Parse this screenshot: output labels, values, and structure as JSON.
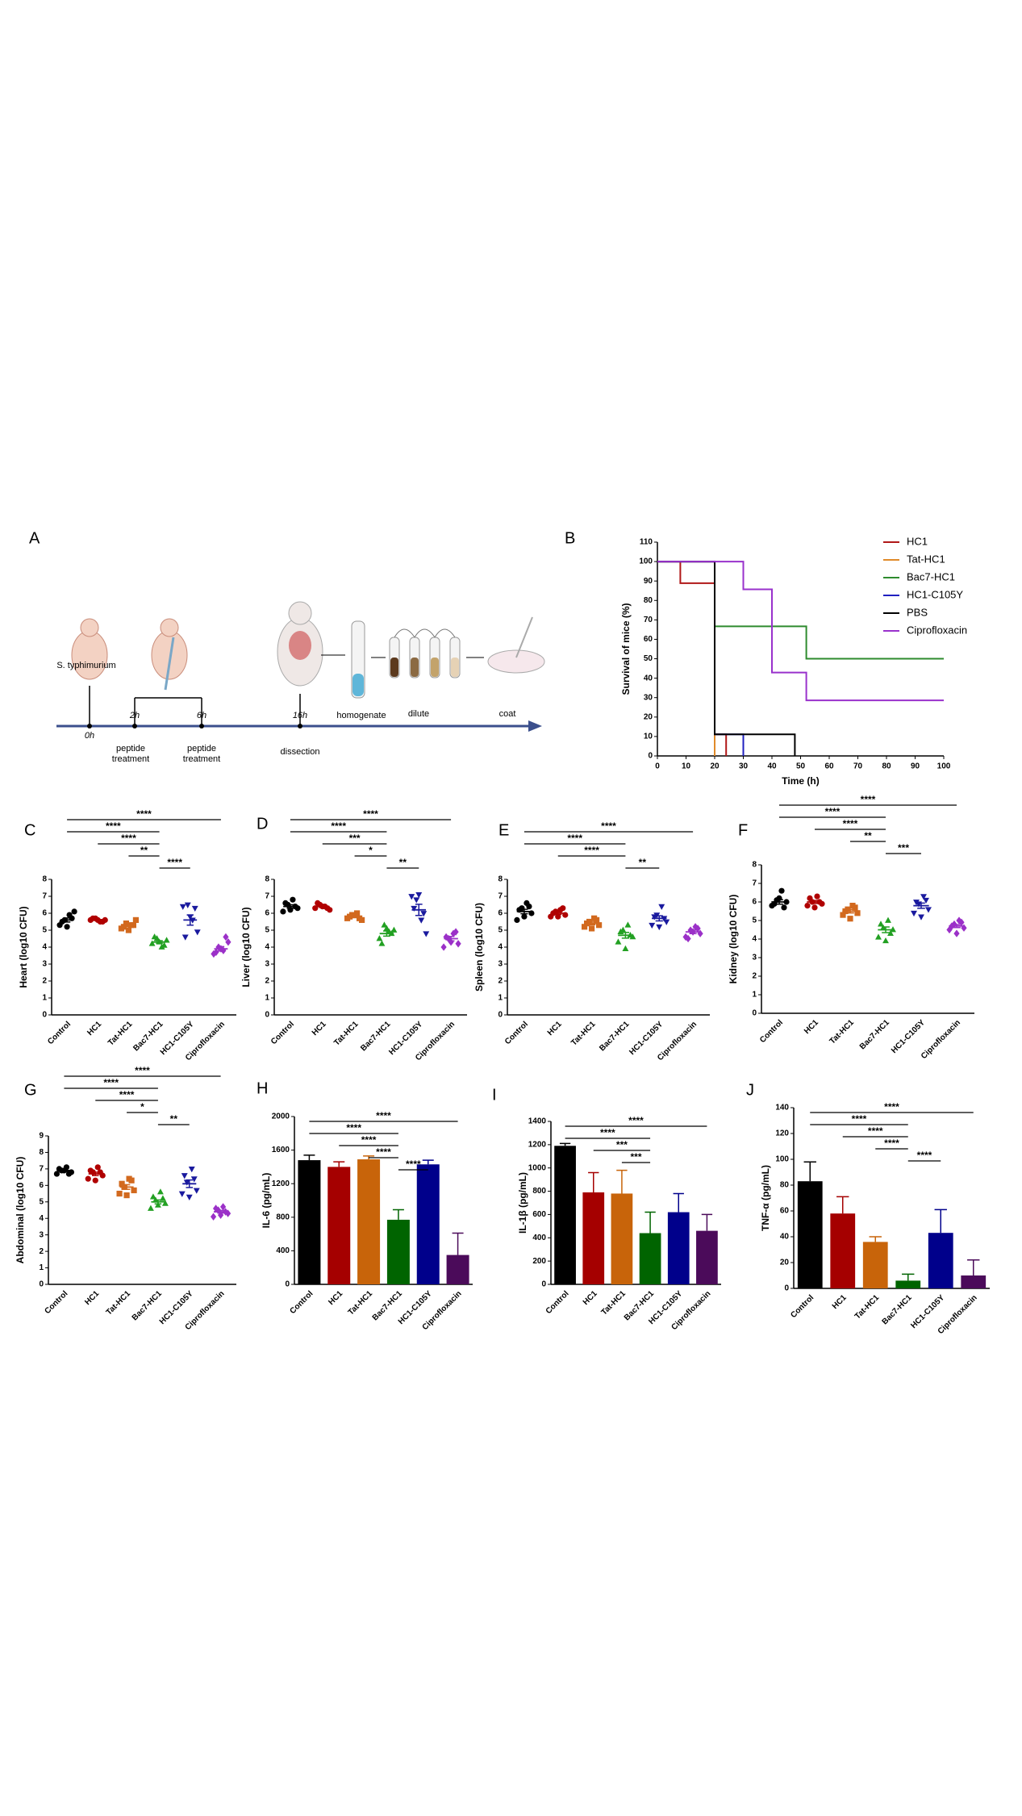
{
  "diagram": {
    "label": "A",
    "organism": "S. typhimurium",
    "t0": "0h",
    "t1": "2h",
    "t2": "6h",
    "t3": "16h",
    "step1": "peptide treatment",
    "step2": "peptide treatment",
    "step3": "dissection",
    "homogenate": "homogenate",
    "dilute": "dilute",
    "coat": "coat"
  },
  "chart_data": [
    {
      "type": "line",
      "label": "B",
      "xlabel": "Time (h)",
      "ylabel": "Survival of mice (%)",
      "xlim": [
        0,
        100
      ],
      "xticks": [
        0,
        10,
        20,
        30,
        40,
        50,
        60,
        70,
        80,
        90,
        100
      ],
      "ylim": [
        0,
        110
      ],
      "yticks": [
        0,
        10,
        20,
        30,
        40,
        50,
        60,
        70,
        80,
        90,
        100,
        110
      ],
      "series": [
        {
          "name": "HC1",
          "color": "#b01818",
          "x": [
            0,
            8,
            8,
            20,
            20,
            24,
            24
          ],
          "values": [
            100,
            100,
            88.9,
            88.9,
            11.1,
            11.1,
            0
          ]
        },
        {
          "name": "Tat-HC1",
          "color": "#e08a2a",
          "x": [
            0,
            20,
            20
          ],
          "values": [
            100,
            100,
            0
          ]
        },
        {
          "name": "Bac7-HC1",
          "color": "#2e8b2e",
          "x": [
            0,
            20,
            20,
            52,
            52,
            100
          ],
          "values": [
            100,
            100,
            66.7,
            66.7,
            50,
            50
          ]
        },
        {
          "name": "HC1-C105Y",
          "color": "#2020c0",
          "x": [
            0,
            20,
            20,
            30,
            30
          ],
          "values": [
            100,
            100,
            11.1,
            11.1,
            0
          ]
        },
        {
          "name": "PBS",
          "color": "#000000",
          "x": [
            0,
            20,
            20,
            48,
            48
          ],
          "values": [
            100,
            100,
            11.1,
            11.1,
            0
          ]
        },
        {
          "name": "Ciprofloxacin",
          "color": "#9932cc",
          "x": [
            0,
            30,
            30,
            40,
            40,
            52,
            52,
            100
          ],
          "values": [
            100,
            100,
            85.7,
            85.7,
            42.9,
            42.9,
            28.6,
            28.6
          ]
        }
      ]
    },
    {
      "type": "strip",
      "label": "C",
      "ylabel": "Heart (log10 CFU)",
      "ylim": [
        0,
        8
      ],
      "yticks": [
        0,
        1,
        2,
        3,
        4,
        5,
        6,
        7,
        8
      ],
      "categories": [
        "Control",
        "HC1",
        "Tat-HC1",
        "Bac7-HC1",
        "HC1-C105Y",
        "Ciprofloxacin"
      ],
      "colors": [
        "#000000",
        "#b00000",
        "#d2691e",
        "#22a022",
        "#1a1a9e",
        "#9b30c8"
      ],
      "markers": [
        "circle",
        "circle",
        "square",
        "triangle",
        "triangle-down",
        "diamond"
      ],
      "values": [
        5.6,
        5.6,
        5.3,
        4.3,
        5.6,
        3.9
      ],
      "errors": [
        0.12,
        0.03,
        0.08,
        0.08,
        0.3,
        0.13
      ],
      "points": [
        [
          5.3,
          5.6,
          5.9,
          6.1,
          5.5,
          5.2,
          5.7
        ],
        [
          5.6,
          5.7,
          5.5,
          5.6,
          5.7,
          5.6,
          5.5
        ],
        [
          5.1,
          5.4,
          5.3,
          5.6,
          5.2,
          5.0,
          5.3
        ],
        [
          4.2,
          4.5,
          4.0,
          4.4,
          4.6,
          4.3,
          4.1
        ],
        [
          6.4,
          6.5,
          5.6,
          4.9,
          4.6,
          5.8,
          6.3
        ],
        [
          3.6,
          4.0,
          3.8,
          4.3,
          3.7,
          3.9,
          4.6
        ]
      ],
      "annotations": [
        {
          "text": "****",
          "from": "Control",
          "to": "Ciprofloxacin"
        },
        {
          "text": "****",
          "from": "Control",
          "to": "Bac7-HC1"
        },
        {
          "text": "****",
          "from": "HC1",
          "to": "Bac7-HC1"
        },
        {
          "text": "**",
          "from": "Tat-HC1",
          "to": "Bac7-HC1"
        },
        {
          "text": "****",
          "from": "Bac7-HC1",
          "to": "HC1-C105Y"
        }
      ]
    },
    {
      "type": "strip",
      "label": "D",
      "ylabel": "Liver (log10 CFU)",
      "ylim": [
        0,
        8
      ],
      "yticks": [
        0,
        1,
        2,
        3,
        4,
        5,
        6,
        7,
        8
      ],
      "categories": [
        "Control",
        "HC1",
        "Tat-HC1",
        "Bac7-HC1",
        "HC1-C105Y",
        "Ciprofloxacin"
      ],
      "colors": [
        "#000000",
        "#b00000",
        "#d2691e",
        "#22a022",
        "#1a1a9e",
        "#9b30c8"
      ],
      "markers": [
        "circle",
        "circle",
        "square",
        "triangle",
        "triangle-down",
        "diamond"
      ],
      "values": [
        6.4,
        6.4,
        5.8,
        4.8,
        6.2,
        4.5
      ],
      "errors": [
        0.1,
        0.06,
        0.06,
        0.15,
        0.33,
        0.13
      ],
      "points": [
        [
          6.1,
          6.5,
          6.8,
          6.3,
          6.6,
          6.2,
          6.4
        ],
        [
          6.3,
          6.5,
          6.4,
          6.2,
          6.6,
          6.4,
          6.3
        ],
        [
          5.7,
          5.9,
          6.0,
          5.6,
          5.8,
          5.9,
          5.7
        ],
        [
          4.5,
          5.3,
          4.9,
          5.0,
          4.2,
          5.1,
          4.8
        ],
        [
          7.0,
          6.8,
          5.6,
          4.8,
          6.3,
          7.1,
          6.0
        ],
        [
          4.0,
          4.5,
          4.8,
          4.2,
          4.6,
          4.3,
          4.9
        ]
      ],
      "annotations": [
        {
          "text": "****",
          "from": "Control",
          "to": "Ciprofloxacin"
        },
        {
          "text": "****",
          "from": "Control",
          "to": "Bac7-HC1"
        },
        {
          "text": "***",
          "from": "HC1",
          "to": "Bac7-HC1"
        },
        {
          "text": "*",
          "from": "Tat-HC1",
          "to": "Bac7-HC1"
        },
        {
          "text": "**",
          "from": "Bac7-HC1",
          "to": "HC1-C105Y"
        }
      ]
    },
    {
      "type": "strip",
      "label": "E",
      "ylabel": "Spleen (log10 CFU)",
      "ylim": [
        0,
        8
      ],
      "yticks": [
        0,
        1,
        2,
        3,
        4,
        5,
        6,
        7,
        8
      ],
      "categories": [
        "Control",
        "HC1",
        "Tat-HC1",
        "Bac7-HC1",
        "HC1-C105Y",
        "Ciprofloxacin"
      ],
      "colors": [
        "#000000",
        "#b00000",
        "#d2691e",
        "#22a022",
        "#1a1a9e",
        "#9b30c8"
      ],
      "markers": [
        "circle",
        "circle",
        "square",
        "triangle",
        "triangle-down",
        "diamond"
      ],
      "values": [
        6.1,
        6.0,
        5.4,
        4.7,
        5.7,
        4.9
      ],
      "errors": [
        0.13,
        0.07,
        0.08,
        0.17,
        0.15,
        0.1
      ],
      "points": [
        [
          5.6,
          6.3,
          6.6,
          6.0,
          6.2,
          5.8,
          6.4
        ],
        [
          5.8,
          6.1,
          6.2,
          5.9,
          6.0,
          5.8,
          6.3
        ],
        [
          5.2,
          5.5,
          5.7,
          5.3,
          5.4,
          5.1,
          5.6
        ],
        [
          4.3,
          5.0,
          5.3,
          4.6,
          4.9,
          3.9,
          4.7
        ],
        [
          5.3,
          5.9,
          6.4,
          5.5,
          5.8,
          5.2,
          5.7
        ],
        [
          4.6,
          5.0,
          5.2,
          4.8,
          4.5,
          4.9,
          5.1
        ]
      ],
      "annotations": [
        {
          "text": "****",
          "from": "Control",
          "to": "Ciprofloxacin"
        },
        {
          "text": "****",
          "from": "Control",
          "to": "Bac7-HC1"
        },
        {
          "text": "****",
          "from": "HC1",
          "to": "Bac7-HC1"
        },
        {
          "text": "**",
          "from": "Bac7-HC1",
          "to": "HC1-C105Y"
        }
      ]
    },
    {
      "type": "strip",
      "label": "F",
      "ylabel": "Kidney (log10 CFU)",
      "ylim": [
        0,
        8
      ],
      "yticks": [
        0,
        1,
        2,
        3,
        4,
        5,
        6,
        7,
        8
      ],
      "categories": [
        "Control",
        "HC1",
        "Tat-HC1",
        "Bac7-HC1",
        "HC1-C105Y",
        "Ciprofloxacin"
      ],
      "colors": [
        "#000000",
        "#b00000",
        "#d2691e",
        "#22a022",
        "#1a1a9e",
        "#9b30c8"
      ],
      "markers": [
        "circle",
        "circle",
        "square",
        "triangle",
        "triangle-down",
        "diamond"
      ],
      "values": [
        6.0,
        6.0,
        5.5,
        4.5,
        5.8,
        4.7
      ],
      "errors": [
        0.12,
        0.08,
        0.09,
        0.15,
        0.14,
        0.08
      ],
      "points": [
        [
          5.8,
          6.1,
          6.6,
          6.0,
          5.9,
          6.2,
          5.7
        ],
        [
          5.8,
          6.0,
          6.3,
          5.9,
          6.2,
          5.7,
          6.0
        ],
        [
          5.3,
          5.6,
          5.8,
          5.4,
          5.5,
          5.1,
          5.7
        ],
        [
          4.1,
          4.6,
          5.0,
          4.5,
          4.8,
          3.9,
          4.3
        ],
        [
          5.4,
          5.9,
          6.3,
          5.6,
          6.0,
          5.2,
          6.1
        ],
        [
          4.5,
          4.8,
          5.0,
          4.6,
          4.7,
          4.3,
          4.9
        ]
      ],
      "annotations": [
        {
          "text": "****",
          "from": "Control",
          "to": "Ciprofloxacin"
        },
        {
          "text": "****",
          "from": "Control",
          "to": "Bac7-HC1"
        },
        {
          "text": "****",
          "from": "HC1",
          "to": "Bac7-HC1"
        },
        {
          "text": "**",
          "from": "Tat-HC1",
          "to": "Bac7-HC1"
        },
        {
          "text": "***",
          "from": "Bac7-HC1",
          "to": "HC1-C105Y"
        }
      ]
    },
    {
      "type": "strip",
      "label": "G",
      "ylabel": "Abdominal (log10 CFU)",
      "ylim": [
        0,
        9
      ],
      "yticks": [
        0,
        1,
        2,
        3,
        4,
        5,
        6,
        7,
        8,
        9
      ],
      "categories": [
        "Control",
        "HC1",
        "Tat-HC1",
        "Bac7-HC1",
        "HC1-C105Y",
        "Ciprofloxacin"
      ],
      "colors": [
        "#000000",
        "#b00000",
        "#d2691e",
        "#22a022",
        "#1a1a9e",
        "#9b30c8"
      ],
      "markers": [
        "circle",
        "circle",
        "square",
        "triangle",
        "triangle-down",
        "diamond"
      ],
      "values": [
        6.9,
        6.7,
        5.9,
        5.0,
        6.1,
        4.4
      ],
      "errors": [
        0.05,
        0.1,
        0.14,
        0.12,
        0.23,
        0.08
      ],
      "points": [
        [
          6.7,
          6.9,
          7.1,
          6.8,
          7.0,
          6.9,
          6.7
        ],
        [
          6.4,
          6.8,
          7.1,
          6.6,
          6.9,
          6.3,
          6.8
        ],
        [
          5.5,
          5.9,
          6.4,
          5.7,
          6.1,
          5.4,
          6.3
        ],
        [
          4.6,
          5.1,
          5.6,
          4.9,
          5.3,
          4.8,
          5.2
        ],
        [
          5.5,
          6.2,
          7.0,
          5.7,
          6.6,
          5.3,
          6.4
        ],
        [
          4.1,
          4.5,
          4.7,
          4.3,
          4.6,
          4.2,
          4.4
        ]
      ],
      "annotations": [
        {
          "text": "****",
          "from": "Control",
          "to": "Ciprofloxacin"
        },
        {
          "text": "****",
          "from": "Control",
          "to": "Bac7-HC1"
        },
        {
          "text": "****",
          "from": "HC1",
          "to": "Bac7-HC1"
        },
        {
          "text": "*",
          "from": "Tat-HC1",
          "to": "Bac7-HC1"
        },
        {
          "text": "**",
          "from": "Bac7-HC1",
          "to": "HC1-C105Y"
        }
      ]
    },
    {
      "type": "bar",
      "label": "H",
      "ylabel": "IL-6 (pg/mL)",
      "ylim": [
        0,
        2000
      ],
      "yticks": [
        0,
        400,
        800,
        1200,
        1600,
        2000
      ],
      "categories": [
        "Control",
        "HC1",
        "Tat-HC1",
        "Bac7-HC1",
        "HC1-C105Y",
        "Ciprofloxacin"
      ],
      "colors": [
        "#000000",
        "#a50000",
        "#c8640a",
        "#006400",
        "#00008b",
        "#4b0b5a"
      ],
      "values": [
        1480,
        1400,
        1490,
        770,
        1430,
        350
      ],
      "errors": [
        60,
        60,
        40,
        120,
        50,
        260
      ],
      "annotations": [
        {
          "text": "****",
          "from": "Control",
          "to": "Ciprofloxacin"
        },
        {
          "text": "****",
          "from": "Control",
          "to": "Bac7-HC1"
        },
        {
          "text": "****",
          "from": "HC1",
          "to": "Bac7-HC1"
        },
        {
          "text": "****",
          "from": "Tat-HC1",
          "to": "Bac7-HC1"
        },
        {
          "text": "****",
          "from": "Bac7-HC1",
          "to": "HC1-C105Y"
        }
      ]
    },
    {
      "type": "bar",
      "label": "I",
      "ylabel": "IL-1β (pg/mL)",
      "ylim": [
        0,
        1400
      ],
      "yticks": [
        0,
        200,
        400,
        600,
        800,
        1000,
        1200,
        1400
      ],
      "categories": [
        "Control",
        "HC1",
        "Tat-HC1",
        "Bac7-HC1",
        "HC1-C105Y",
        "Ciprofloxacin"
      ],
      "colors": [
        "#000000",
        "#a50000",
        "#c8640a",
        "#006400",
        "#00008b",
        "#4b0b5a"
      ],
      "values": [
        1190,
        790,
        780,
        440,
        620,
        460
      ],
      "errors": [
        20,
        170,
        200,
        180,
        160,
        140
      ],
      "annotations": [
        {
          "text": "****",
          "from": "Control",
          "to": "Ciprofloxacin"
        },
        {
          "text": "****",
          "from": "Control",
          "to": "Bac7-HC1"
        },
        {
          "text": "***",
          "from": "HC1",
          "to": "Bac7-HC1"
        },
        {
          "text": "***",
          "from": "Tat-HC1",
          "to": "Bac7-HC1"
        }
      ]
    },
    {
      "type": "bar",
      "label": "J",
      "ylabel": "TNF-α (pg/mL)",
      "ylim": [
        0,
        140
      ],
      "yticks": [
        0,
        20,
        40,
        60,
        80,
        100,
        120,
        140
      ],
      "categories": [
        "Control",
        "HC1",
        "Tat-HC1",
        "Bac7-HC1",
        "HC1-C105Y",
        "Ciprofloxacin"
      ],
      "colors": [
        "#000000",
        "#a50000",
        "#c8640a",
        "#006400",
        "#00008b",
        "#4b0b5a"
      ],
      "values": [
        83,
        58,
        36,
        6,
        43,
        10
      ],
      "errors": [
        15,
        13,
        4,
        5,
        18,
        12
      ],
      "annotations": [
        {
          "text": "****",
          "from": "Control",
          "to": "Ciprofloxacin"
        },
        {
          "text": "****",
          "from": "Control",
          "to": "Bac7-HC1"
        },
        {
          "text": "****",
          "from": "HC1",
          "to": "Bac7-HC1"
        },
        {
          "text": "****",
          "from": "Tat-HC1",
          "to": "Bac7-HC1"
        },
        {
          "text": "****",
          "from": "Bac7-HC1",
          "to": "HC1-C105Y"
        }
      ]
    }
  ]
}
